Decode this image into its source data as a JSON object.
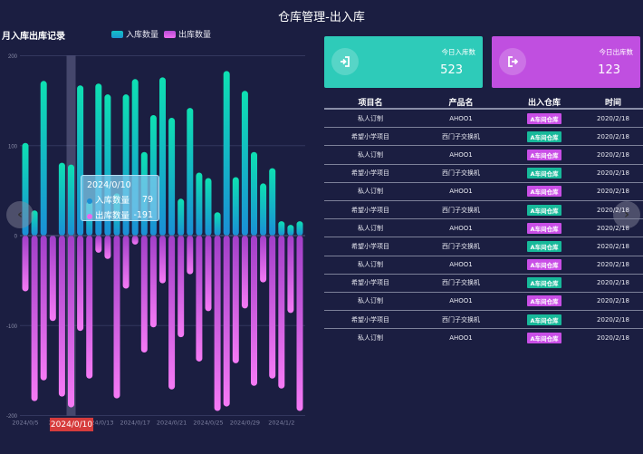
{
  "header": {
    "title": "仓库管理-出入库"
  },
  "chart_panel": {
    "title": "月入库出库记录",
    "legend": [
      {
        "label": "入库数量",
        "color": "#1fc8c0"
      },
      {
        "label": "出库数量",
        "color": "#d159e8"
      }
    ],
    "tooltip": {
      "date": "2024/0/10",
      "rows": [
        {
          "label": "入库数量",
          "value": "79",
          "dot_color": "#1a8fd6"
        },
        {
          "label": "出库数量",
          "value": "-191",
          "dot_color": "#ee66ee"
        }
      ]
    },
    "axis_pointer_label": "2024/0/10",
    "nav": {
      "left": "‹",
      "right": "›"
    }
  },
  "chart_data": {
    "type": "bar",
    "title": "月入库出库记录",
    "xlabel": "",
    "ylabel": "",
    "ylim": [
      -200,
      200
    ],
    "yticks": [
      200,
      100,
      0,
      -100,
      -200
    ],
    "grid": true,
    "legend_position": "top",
    "categories": [
      "2024/0/5",
      "2024/0/6",
      "2024/0/7",
      "2024/0/8",
      "2024/0/9",
      "2024/0/10",
      "2024/0/11",
      "2024/0/12",
      "2024/0/13",
      "2024/0/14",
      "2024/0/15",
      "2024/0/16",
      "2024/0/17",
      "2024/0/18",
      "2024/0/19",
      "2024/0/20",
      "2024/0/21",
      "2024/0/22",
      "2024/0/23",
      "2024/0/24",
      "2024/0/25",
      "2024/0/26",
      "2024/0/27",
      "2024/0/28",
      "2024/0/29",
      "2024/0/30",
      "2024/0/31",
      "2024/1/1",
      "2024/1/2",
      "2024/1/3",
      "2024/1/4"
    ],
    "xtick_labels": [
      "2024/0/5",
      "2024/0/9",
      "2024/0/13",
      "2024/0/17",
      "2024/0/21",
      "2024/0/25",
      "2024/0/29",
      "2024/1/2"
    ],
    "highlighted_category": "2024/0/10",
    "series": [
      {
        "name": "入库数量",
        "values": [
          103,
          28,
          172,
          0,
          81,
          79,
          167,
          38,
          169,
          157,
          47,
          157,
          174,
          93,
          134,
          176,
          131,
          41,
          142,
          70,
          64,
          26,
          183,
          65,
          161,
          93,
          58,
          75,
          16,
          12,
          16
        ]
      },
      {
        "name": "出库数量",
        "values": [
          -62,
          -184,
          -161,
          -95,
          -179,
          -191,
          -106,
          -159,
          -19,
          -26,
          -181,
          -59,
          -10,
          -130,
          -102,
          -53,
          -171,
          -113,
          -43,
          -140,
          -84,
          -195,
          -190,
          -142,
          -81,
          -167,
          -52,
          -159,
          -170,
          -86,
          -195
        ]
      }
    ]
  },
  "cards": [
    {
      "label": "今日入库数",
      "value": "523",
      "color": "#2ecbb9",
      "icon": "sign-in-icon"
    },
    {
      "label": "今日出库数",
      "value": "123",
      "color": "#c04fe0",
      "icon": "sign-out-icon"
    }
  ],
  "table": {
    "headers": [
      "项目名",
      "产品名",
      "出入仓库",
      "时间"
    ],
    "rows": [
      {
        "project": "私人订制",
        "product": "AHOO1",
        "warehouse": "A车间仓库",
        "type": "out",
        "time": "2020/2/18"
      },
      {
        "project": "希望小学项目",
        "product": "西门子交换机",
        "warehouse": "A车间仓库",
        "type": "in",
        "time": "2020/2/18"
      },
      {
        "project": "私人订制",
        "product": "AHOO1",
        "warehouse": "A车间仓库",
        "type": "out",
        "time": "2020/2/18"
      },
      {
        "project": "希望小学项目",
        "product": "西门子交换机",
        "warehouse": "A车间仓库",
        "type": "in",
        "time": "2020/2/18"
      },
      {
        "project": "私人订制",
        "product": "AHOO1",
        "warehouse": "A车间仓库",
        "type": "out",
        "time": "2020/2/18"
      },
      {
        "project": "希望小学项目",
        "product": "西门子交换机",
        "warehouse": "A车间仓库",
        "type": "in",
        "time": "2020/2/18"
      },
      {
        "project": "私人订制",
        "product": "AHOO1",
        "warehouse": "A车间仓库",
        "type": "out",
        "time": "2020/2/18"
      },
      {
        "project": "希望小学项目",
        "product": "西门子交换机",
        "warehouse": "A车间仓库",
        "type": "in",
        "time": "2020/2/18"
      },
      {
        "project": "私人订制",
        "product": "AHOO1",
        "warehouse": "A车间仓库",
        "type": "out",
        "time": "2020/2/18"
      },
      {
        "project": "希望小学项目",
        "product": "西门子交换机",
        "warehouse": "A车间仓库",
        "type": "in",
        "time": "2020/2/18"
      },
      {
        "project": "私人订制",
        "product": "AHOO1",
        "warehouse": "A车间仓库",
        "type": "out",
        "time": "2020/2/18"
      },
      {
        "project": "希望小学项目",
        "product": "西门子交换机",
        "warehouse": "A车间仓库",
        "type": "in",
        "time": "2020/2/18"
      },
      {
        "project": "私人订制",
        "product": "AHOO1",
        "warehouse": "A车间仓库",
        "type": "out",
        "time": "2020/2/18"
      }
    ]
  },
  "colors": {
    "background": "#1b1e41",
    "badge_in": "#17b99a",
    "badge_out": "#c94ee6",
    "pointer_label": "#d63c3c"
  }
}
